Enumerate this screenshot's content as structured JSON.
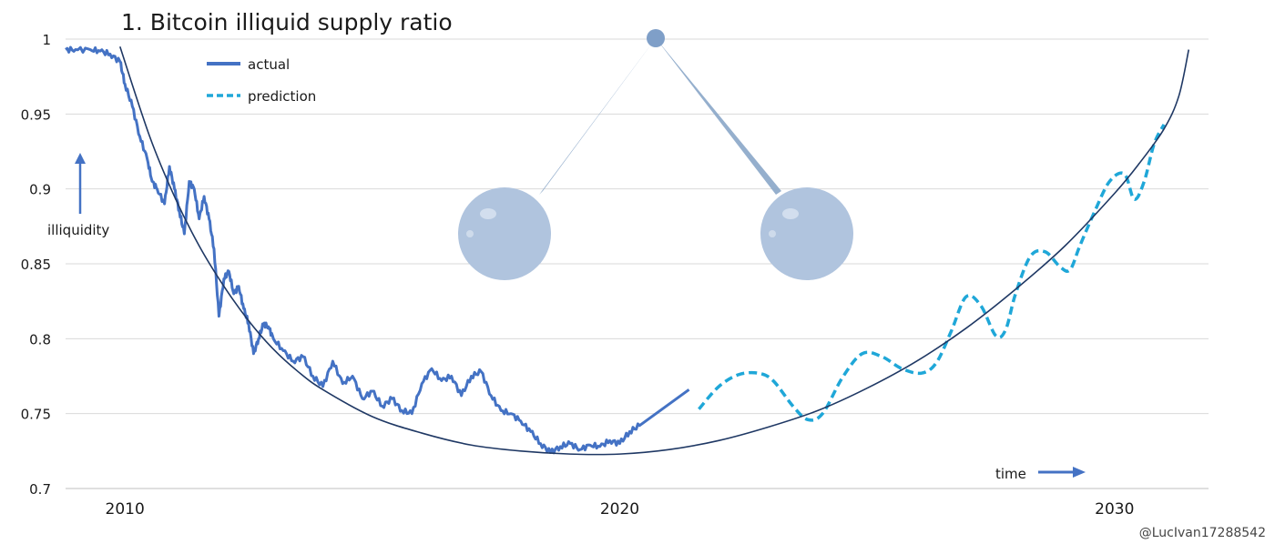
{
  "colors": {
    "actual": "#4472c4",
    "prediction": "#1fa7d8",
    "trend": "#1f3864",
    "grid": "#d9d9d9",
    "text": "#1a1a1a",
    "bubble": "#b0c4de",
    "pendulum": "#8aa6c8"
  },
  "chart_data": {
    "type": "line",
    "title": "1. Bitcoin illiquid supply ratio",
    "ylim": [
      0.7,
      1.0
    ],
    "xlim": [
      2008.8,
      2031.9
    ],
    "y_ticks": [
      "1",
      "0.95",
      "0.9",
      "0.85",
      "0.8",
      "0.75",
      "0.7"
    ],
    "y_tick_values": [
      1.0,
      0.95,
      0.9,
      0.85,
      0.8,
      0.75,
      0.7
    ],
    "x_ticks": [
      "2010",
      "2020",
      "2030"
    ],
    "x_tick_values": [
      2010,
      2020,
      2030
    ],
    "grid": "horizontal",
    "legend": {
      "position": "top-left",
      "entries": [
        "actual",
        "prediction"
      ]
    },
    "annotations": {
      "y_arrow_label": "illiquidity",
      "x_arrow_label": "time",
      "watermark": "@LucIvan17288542"
    },
    "series": [
      {
        "name": "actual",
        "style": "solid",
        "x": [
          2008.8,
          2009.0,
          2009.3,
          2009.5,
          2009.7,
          2009.9,
          2010.0,
          2010.15,
          2010.3,
          2010.45,
          2010.55,
          2010.65,
          2010.8,
          2010.9,
          2011.0,
          2011.1,
          2011.2,
          2011.3,
          2011.4,
          2011.5,
          2011.6,
          2011.7,
          2011.8,
          2011.9,
          2012.0,
          2012.1,
          2012.2,
          2012.3,
          2012.4,
          2012.5,
          2012.6,
          2012.7,
          2012.8,
          2012.9,
          2013.0,
          2013.2,
          2013.4,
          2013.6,
          2013.8,
          2014.0,
          2014.2,
          2014.4,
          2014.6,
          2014.8,
          2015.0,
          2015.2,
          2015.4,
          2015.6,
          2015.8,
          2016.0,
          2016.2,
          2016.4,
          2016.6,
          2016.8,
          2017.0,
          2017.2,
          2017.4,
          2017.6,
          2017.8,
          2018.0,
          2018.2,
          2018.4,
          2018.6,
          2018.8,
          2019.0,
          2019.2,
          2019.4,
          2019.6,
          2019.8,
          2020.0,
          2020.2,
          2020.4,
          2021.4
        ],
        "y": [
          0.993,
          0.993,
          0.993,
          0.992,
          0.99,
          0.985,
          0.97,
          0.955,
          0.935,
          0.92,
          0.905,
          0.9,
          0.89,
          0.915,
          0.9,
          0.885,
          0.87,
          0.905,
          0.9,
          0.88,
          0.895,
          0.88,
          0.86,
          0.815,
          0.84,
          0.845,
          0.83,
          0.835,
          0.82,
          0.81,
          0.79,
          0.8,
          0.81,
          0.808,
          0.8,
          0.792,
          0.785,
          0.788,
          0.775,
          0.768,
          0.785,
          0.77,
          0.775,
          0.76,
          0.765,
          0.755,
          0.76,
          0.752,
          0.75,
          0.77,
          0.78,
          0.772,
          0.775,
          0.762,
          0.775,
          0.778,
          0.762,
          0.752,
          0.75,
          0.745,
          0.738,
          0.73,
          0.724,
          0.728,
          0.73,
          0.726,
          0.729,
          0.728,
          0.732,
          0.73,
          0.738,
          0.742,
          0.766
        ]
      },
      {
        "name": "prediction",
        "style": "dashed",
        "x": [
          2021.6,
          2022.0,
          2022.4,
          2022.8,
          2023.1,
          2023.5,
          2023.8,
          2024.1,
          2024.5,
          2024.9,
          2025.3,
          2025.7,
          2026.1,
          2026.4,
          2026.7,
          2027.0,
          2027.3,
          2027.6,
          2027.8,
          2028.0,
          2028.3,
          2028.6,
          2028.9,
          2029.1,
          2029.3,
          2029.6,
          2029.9,
          2030.2,
          2030.4,
          2030.6,
          2030.8,
          2031.0
        ],
        "y": [
          0.753,
          0.768,
          0.776,
          0.777,
          0.772,
          0.755,
          0.746,
          0.75,
          0.774,
          0.79,
          0.788,
          0.78,
          0.777,
          0.784,
          0.805,
          0.828,
          0.822,
          0.802,
          0.806,
          0.83,
          0.855,
          0.858,
          0.848,
          0.846,
          0.862,
          0.885,
          0.905,
          0.91,
          0.893,
          0.905,
          0.93,
          0.943
        ]
      },
      {
        "name": "",
        "style": "thin-trend",
        "x": [
          2009.9,
          2010.5,
          2011.0,
          2011.5,
          2012.0,
          2012.5,
          2013.0,
          2013.5,
          2014.0,
          2015.0,
          2016.0,
          2017.0,
          2018.0,
          2019.0,
          2020.0,
          2021.0,
          2022.0,
          2023.0,
          2024.0,
          2025.0,
          2026.0,
          2027.0,
          2028.0,
          2029.0,
          2030.0,
          2030.5,
          2031.0,
          2031.3,
          2031.5
        ],
        "y": [
          0.995,
          0.935,
          0.895,
          0.862,
          0.835,
          0.812,
          0.793,
          0.778,
          0.766,
          0.748,
          0.737,
          0.729,
          0.725,
          0.723,
          0.723,
          0.726,
          0.732,
          0.741,
          0.752,
          0.767,
          0.785,
          0.807,
          0.833,
          0.862,
          0.897,
          0.917,
          0.94,
          0.962,
          0.993
        ]
      }
    ]
  }
}
